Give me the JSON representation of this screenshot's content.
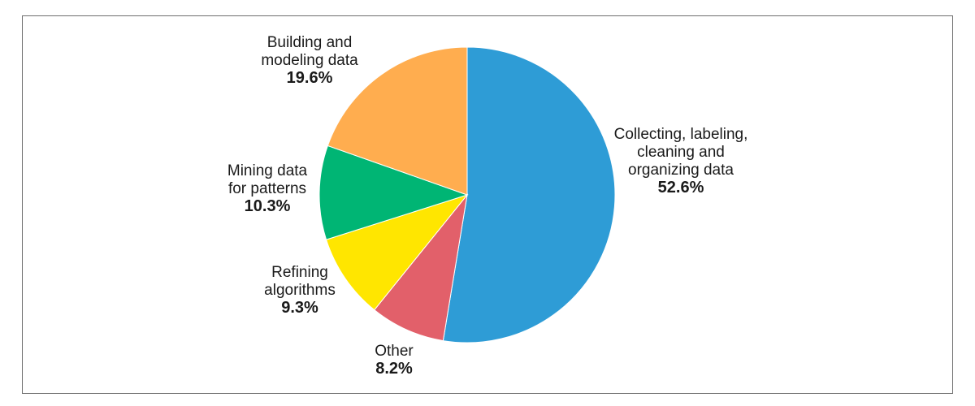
{
  "chart_data": {
    "type": "pie",
    "title": "",
    "start_angle_deg": 0,
    "direction": "clockwise",
    "slices": [
      {
        "label_lines": [
          "Collecting, labeling,",
          "cleaning and",
          "organizing data"
        ],
        "percent_label": "52.6%",
        "value": 52.6,
        "color": "#2e9cd6"
      },
      {
        "label_lines": [
          "Other"
        ],
        "percent_label": "8.2%",
        "value": 8.2,
        "color": "#e2606a"
      },
      {
        "label_lines": [
          "Refining",
          "algorithms"
        ],
        "percent_label": "9.3%",
        "value": 9.3,
        "color": "#ffe600"
      },
      {
        "label_lines": [
          "Mining data",
          "for patterns"
        ],
        "percent_label": "10.3%",
        "value": 10.3,
        "color": "#00b574"
      },
      {
        "label_lines": [
          "Building and",
          "modeling data"
        ],
        "percent_label": "19.6%",
        "value": 19.6,
        "color": "#ffad4f"
      }
    ]
  }
}
